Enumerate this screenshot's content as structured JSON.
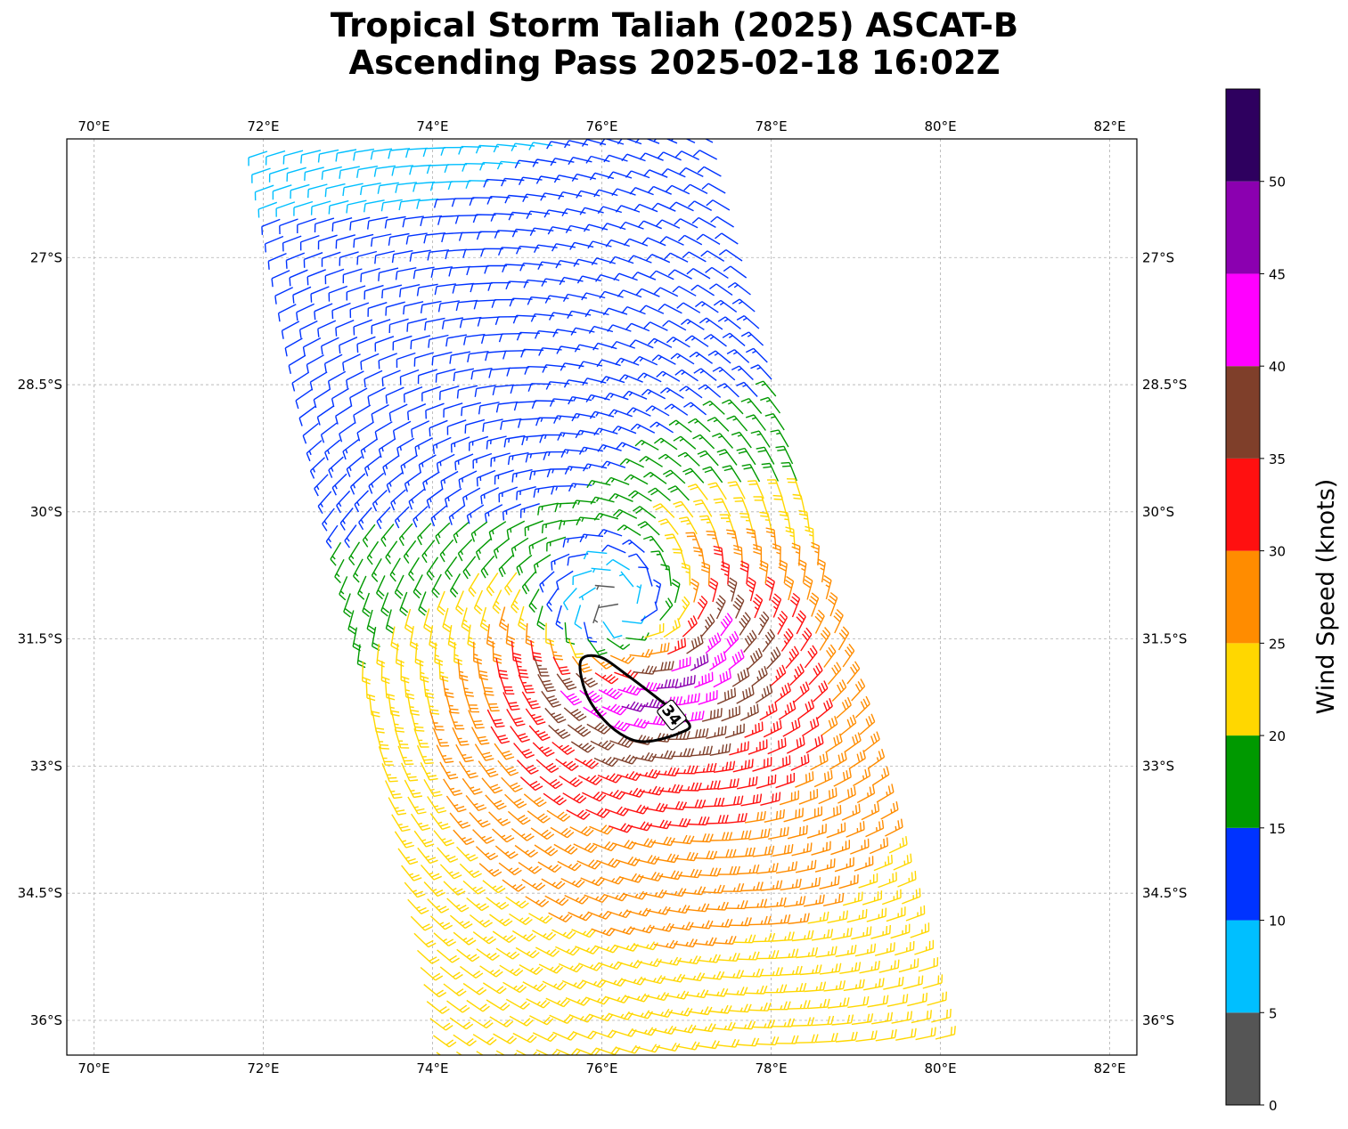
{
  "chart_data": {
    "type": "wind-barb-map",
    "title_line1": "Tropical Storm Taliah (2025) ASCAT-B",
    "title_line2": "Ascending Pass 2025-02-18 16:02Z",
    "lon_range": [
      69.68,
      82.32
    ],
    "lat_range": [
      -36.41,
      -25.6
    ],
    "lon_ticks": [
      70,
      72,
      74,
      76,
      78,
      80,
      82
    ],
    "lon_tick_labels": [
      "70°E",
      "72°E",
      "74°E",
      "76°E",
      "78°E",
      "80°E",
      "82°E"
    ],
    "lat_ticks": [
      -27,
      -28.5,
      -30,
      -31.5,
      -33,
      -34.5,
      -36
    ],
    "lat_tick_labels": [
      "27°S",
      "28.5°S",
      "30°S",
      "31.5°S",
      "33°S",
      "34.5°S",
      "36°S"
    ],
    "grid": true,
    "storm_center": [
      76.2,
      -31.1
    ],
    "max_wind_kt": 42,
    "contour": {
      "level_label": "34",
      "points": [
        [
          75.75,
          -31.76
        ],
        [
          75.97,
          -31.71
        ],
        [
          76.29,
          -31.92
        ],
        [
          76.71,
          -32.24
        ],
        [
          77.03,
          -32.5
        ],
        [
          76.92,
          -32.61
        ],
        [
          76.55,
          -32.71
        ],
        [
          76.29,
          -32.66
        ],
        [
          76.02,
          -32.45
        ],
        [
          75.81,
          -32.13
        ]
      ]
    },
    "colorbar": {
      "label": "Wind Speed (knots)",
      "bounds": [
        0,
        5,
        10,
        15,
        20,
        25,
        30,
        35,
        40,
        45,
        50,
        55
      ],
      "tick_values": [
        0,
        5,
        10,
        15,
        20,
        25,
        30,
        35,
        40,
        45,
        50
      ],
      "tick_labels": [
        "0",
        "5",
        "10",
        "15",
        "20",
        "25",
        "30",
        "35",
        "40",
        "45",
        "50"
      ],
      "colors": [
        "#555555",
        "#00bfff",
        "#0033ff",
        "#009900",
        "#ffd700",
        "#ff8c00",
        "#ff1010",
        "#7f3f2a",
        "#ff00ff",
        "#8b00b0",
        "#2e005f"
      ]
    }
  }
}
